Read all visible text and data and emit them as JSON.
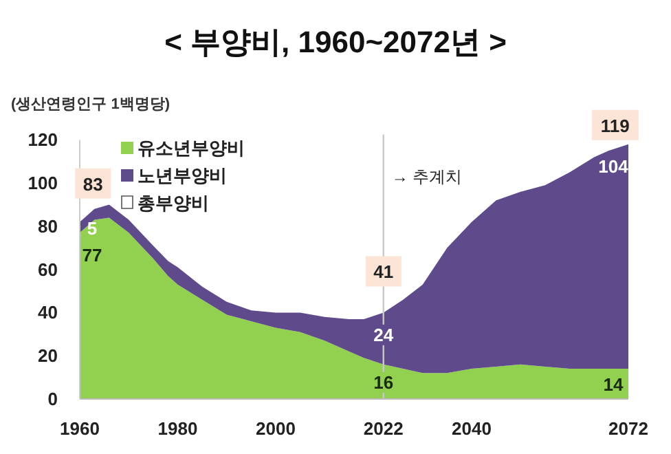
{
  "chart_data": {
    "type": "area",
    "stacked": true,
    "title": "< 부양비, 1960~2072년 >",
    "ylabel": "(생산연령인구 1백명당)",
    "x": [
      1960,
      1963,
      1966,
      1970,
      1975,
      1978,
      1980,
      1985,
      1990,
      1995,
      2000,
      2005,
      2010,
      2015,
      2018,
      2022,
      2026,
      2030,
      2035,
      2040,
      2045,
      2050,
      2055,
      2060,
      2065,
      2068,
      2072
    ],
    "series": [
      {
        "name": "유소년부양비",
        "color": "#92d050",
        "values": [
          77,
          83,
          84,
          77,
          65,
          57,
          53,
          46,
          39,
          36,
          33,
          31,
          27,
          22,
          19,
          16,
          14,
          12,
          12,
          14,
          15,
          16,
          15,
          14,
          14,
          14,
          14
        ],
        "value_labels": [
          "77",
          null,
          null,
          null,
          null,
          null,
          null,
          null,
          null,
          null,
          null,
          null,
          null,
          null,
          null,
          "16",
          null,
          null,
          null,
          null,
          null,
          null,
          null,
          null,
          null,
          null,
          "14"
        ]
      },
      {
        "name": "노년부양비",
        "color": "#5f4b8b",
        "values": [
          5,
          5,
          6,
          6,
          6,
          7,
          8,
          6,
          6,
          5,
          7,
          9,
          11,
          15,
          18,
          24,
          32,
          41,
          58,
          68,
          77,
          80,
          84,
          91,
          98,
          101,
          104
        ],
        "value_labels": [
          "5",
          null,
          null,
          null,
          null,
          null,
          null,
          null,
          null,
          null,
          null,
          null,
          null,
          null,
          null,
          "24",
          null,
          null,
          null,
          null,
          null,
          null,
          null,
          null,
          null,
          null,
          "104"
        ]
      }
    ],
    "totals": [
      "83",
      null,
      null,
      null,
      null,
      null,
      null,
      null,
      null,
      null,
      null,
      null,
      null,
      null,
      null,
      "41",
      null,
      null,
      null,
      null,
      null,
      null,
      null,
      null,
      null,
      null,
      "119"
    ],
    "annotations": [
      "총부양비",
      {
        "text": "→ 추계치",
        "x": 2022,
        "y": 103
      }
    ],
    "ref_lines": [
      {
        "axis": "x",
        "value": 2022,
        "color": "#c8c8c8"
      }
    ],
    "xlim": [
      1960,
      2072
    ],
    "xticks": [
      1960,
      1980,
      2000,
      2022,
      2040,
      2072
    ],
    "ylim": [
      0,
      120
    ],
    "yticks": [
      0,
      20,
      40,
      60,
      80,
      100,
      120
    ],
    "legend": "top left",
    "grid": false
  }
}
